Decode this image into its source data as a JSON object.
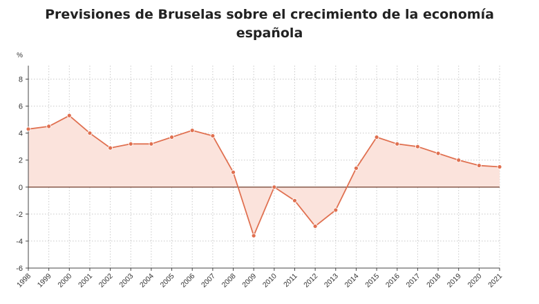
{
  "title_line1": "Previsiones de Bruselas sobre el crecimiento de la economía",
  "title_line2": "española",
  "chart_data": {
    "type": "area",
    "title": "Previsiones de Bruselas sobre el crecimiento de la economía española",
    "ylabel": "%",
    "xlabel": "",
    "ylim": [
      -6,
      9
    ],
    "yticks": [
      -6,
      -4,
      -2,
      0,
      2,
      4,
      6,
      8
    ],
    "grid": true,
    "categories": [
      "1998",
      "1999",
      "2000",
      "2001",
      "2002",
      "2003",
      "2004",
      "2005",
      "2006",
      "2007",
      "2008",
      "2009",
      "2010",
      "2011",
      "2012",
      "2013",
      "2014",
      "2015",
      "2016",
      "2017",
      "2018",
      "2019",
      "2020",
      "2021"
    ],
    "series": [
      {
        "values": [
          4.3,
          4.5,
          5.3,
          4.0,
          2.9,
          3.2,
          3.2,
          3.7,
          4.2,
          3.8,
          1.1,
          -3.6,
          0.0,
          -1.0,
          -2.9,
          -1.7,
          1.4,
          3.7,
          3.2,
          3.0,
          2.5,
          2.0,
          1.6,
          1.5
        ],
        "color": "#e07050"
      }
    ],
    "fill_color": "#fbe3dc",
    "zero_line_color": "#7a4a3a"
  }
}
